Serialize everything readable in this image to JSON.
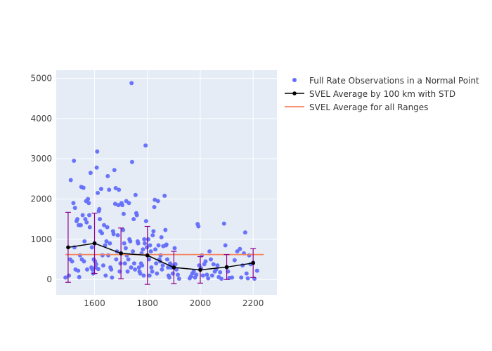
{
  "chart_data": {
    "type": "scatter",
    "title": "",
    "xlabel": "",
    "ylabel": "",
    "xlim": [
      1455,
      2290
    ],
    "ylim": [
      -380,
      5200
    ],
    "xticks": [
      1600,
      1800,
      2000,
      2200
    ],
    "yticks": [
      0,
      1000,
      2000,
      3000,
      4000,
      5000
    ],
    "grid": true,
    "legend_position": "outside-right-top",
    "colors": {
      "background": "#E5ECF6",
      "grid": "#FFFFFF",
      "scatter": "#636EFA",
      "svel_line": "#000000",
      "error_bars": "#8B008B",
      "overall_line": "#F4845F"
    },
    "legend": [
      {
        "label": "Full Rate Observations in a Normal Point",
        "symbol": "dot"
      },
      {
        "label": "SVEL Average by 100 km with STD",
        "symbol": "line-dot"
      },
      {
        "label": "SVEL Average for all Ranges",
        "symbol": "line"
      }
    ],
    "svel_average": {
      "x": [
        1500,
        1600,
        1700,
        1800,
        1900,
        2000,
        2100,
        2200
      ],
      "y": [
        800,
        900,
        650,
        600,
        300,
        240,
        310,
        410
      ],
      "std": [
        870,
        750,
        630,
        720,
        400,
        330,
        310,
        360
      ]
    },
    "overall_average": {
      "x": [
        1490,
        2240
      ],
      "y": 620
    },
    "scatter_points": [
      [
        1490,
        50
      ],
      [
        1503,
        100
      ],
      [
        1508,
        500
      ],
      [
        1510,
        2470
      ],
      [
        1515,
        450
      ],
      [
        1520,
        1900
      ],
      [
        1522,
        2950
      ],
      [
        1524,
        800
      ],
      [
        1526,
        1780
      ],
      [
        1528,
        250
      ],
      [
        1532,
        1450
      ],
      [
        1535,
        1500
      ],
      [
        1538,
        220
      ],
      [
        1540,
        1350
      ],
      [
        1542,
        60
      ],
      [
        1545,
        600
      ],
      [
        1548,
        1350
      ],
      [
        1550,
        2300
      ],
      [
        1552,
        500
      ],
      [
        1555,
        1600
      ],
      [
        1558,
        2280
      ],
      [
        1560,
        450
      ],
      [
        1562,
        950
      ],
      [
        1565,
        1500
      ],
      [
        1568,
        1950
      ],
      [
        1570,
        1420
      ],
      [
        1572,
        250
      ],
      [
        1575,
        2000
      ],
      [
        1578,
        1900
      ],
      [
        1580,
        1600
      ],
      [
        1582,
        1300
      ],
      [
        1585,
        2650
      ],
      [
        1588,
        300
      ],
      [
        1590,
        800
      ],
      [
        1592,
        250
      ],
      [
        1595,
        150
      ],
      [
        1597,
        500
      ],
      [
        1600,
        900
      ],
      [
        1602,
        450
      ],
      [
        1604,
        300
      ],
      [
        1606,
        380
      ],
      [
        1608,
        2780
      ],
      [
        1610,
        3180
      ],
      [
        1612,
        2150
      ],
      [
        1614,
        260
      ],
      [
        1616,
        1700
      ],
      [
        1618,
        1750
      ],
      [
        1620,
        1500
      ],
      [
        1622,
        1200
      ],
      [
        1625,
        2250
      ],
      [
        1628,
        1150
      ],
      [
        1630,
        600
      ],
      [
        1633,
        350
      ],
      [
        1636,
        1350
      ],
      [
        1640,
        850
      ],
      [
        1642,
        100
      ],
      [
        1645,
        950
      ],
      [
        1648,
        1300
      ],
      [
        1650,
        2570
      ],
      [
        1652,
        600
      ],
      [
        1655,
        2230
      ],
      [
        1658,
        900
      ],
      [
        1660,
        300
      ],
      [
        1663,
        250
      ],
      [
        1666,
        50
      ],
      [
        1670,
        1200
      ],
      [
        1672,
        1130
      ],
      [
        1675,
        2720
      ],
      [
        1678,
        1880
      ],
      [
        1680,
        2270
      ],
      [
        1682,
        500
      ],
      [
        1685,
        700
      ],
      [
        1688,
        1100
      ],
      [
        1690,
        1850
      ],
      [
        1692,
        2230
      ],
      [
        1695,
        200
      ],
      [
        1698,
        400
      ],
      [
        1700,
        650
      ],
      [
        1702,
        1900
      ],
      [
        1705,
        1850
      ],
      [
        1708,
        1230
      ],
      [
        1710,
        1630
      ],
      [
        1712,
        900
      ],
      [
        1715,
        400
      ],
      [
        1718,
        780
      ],
      [
        1720,
        1950
      ],
      [
        1722,
        600
      ],
      [
        1725,
        200
      ],
      [
        1728,
        500
      ],
      [
        1730,
        1900
      ],
      [
        1732,
        1000
      ],
      [
        1735,
        950
      ],
      [
        1738,
        300
      ],
      [
        1740,
        4880
      ],
      [
        1742,
        2920
      ],
      [
        1745,
        700
      ],
      [
        1748,
        1500
      ],
      [
        1750,
        400
      ],
      [
        1753,
        250
      ],
      [
        1755,
        2100
      ],
      [
        1758,
        1650
      ],
      [
        1760,
        1600
      ],
      [
        1763,
        950
      ],
      [
        1765,
        900
      ],
      [
        1768,
        300
      ],
      [
        1770,
        200
      ],
      [
        1773,
        150
      ],
      [
        1776,
        400
      ],
      [
        1778,
        650
      ],
      [
        1780,
        350
      ],
      [
        1783,
        750
      ],
      [
        1786,
        100
      ],
      [
        1788,
        1000
      ],
      [
        1790,
        900
      ],
      [
        1793,
        3330
      ],
      [
        1795,
        1450
      ],
      [
        1798,
        800
      ],
      [
        1800,
        600
      ],
      [
        1803,
        1000
      ],
      [
        1806,
        500
      ],
      [
        1808,
        100
      ],
      [
        1810,
        850
      ],
      [
        1813,
        700
      ],
      [
        1815,
        300
      ],
      [
        1818,
        200
      ],
      [
        1820,
        1100
      ],
      [
        1823,
        1200
      ],
      [
        1826,
        1800
      ],
      [
        1828,
        1980
      ],
      [
        1830,
        750
      ],
      [
        1833,
        400
      ],
      [
        1836,
        150
      ],
      [
        1840,
        1950
      ],
      [
        1842,
        850
      ],
      [
        1845,
        500
      ],
      [
        1848,
        450
      ],
      [
        1850,
        600
      ],
      [
        1853,
        1050
      ],
      [
        1855,
        250
      ],
      [
        1858,
        350
      ],
      [
        1860,
        830
      ],
      [
        1865,
        2080
      ],
      [
        1868,
        1230
      ],
      [
        1870,
        850
      ],
      [
        1872,
        870
      ],
      [
        1875,
        500
      ],
      [
        1878,
        300
      ],
      [
        1880,
        100
      ],
      [
        1883,
        50
      ],
      [
        1886,
        400
      ],
      [
        1890,
        300
      ],
      [
        1893,
        350
      ],
      [
        1896,
        150
      ],
      [
        1900,
        300
      ],
      [
        1903,
        780
      ],
      [
        1906,
        380
      ],
      [
        1910,
        250
      ],
      [
        1915,
        120
      ],
      [
        1920,
        20
      ],
      [
        1960,
        30
      ],
      [
        1965,
        80
      ],
      [
        1970,
        150
      ],
      [
        1975,
        200
      ],
      [
        1980,
        50
      ],
      [
        1985,
        120
      ],
      [
        1990,
        1380
      ],
      [
        1993,
        1320
      ],
      [
        1996,
        350
      ],
      [
        2000,
        250
      ],
      [
        2003,
        280
      ],
      [
        2006,
        600
      ],
      [
        2010,
        100
      ],
      [
        2015,
        380
      ],
      [
        2020,
        450
      ],
      [
        2025,
        120
      ],
      [
        2030,
        30
      ],
      [
        2035,
        700
      ],
      [
        2040,
        500
      ],
      [
        2045,
        100
      ],
      [
        2050,
        380
      ],
      [
        2055,
        200
      ],
      [
        2060,
        250
      ],
      [
        2065,
        350
      ],
      [
        2070,
        60
      ],
      [
        2075,
        180
      ],
      [
        2080,
        20
      ],
      [
        2090,
        1390
      ],
      [
        2095,
        850
      ],
      [
        2100,
        300
      ],
      [
        2105,
        200
      ],
      [
        2110,
        40
      ],
      [
        2120,
        50
      ],
      [
        2130,
        480
      ],
      [
        2140,
        700
      ],
      [
        2150,
        760
      ],
      [
        2155,
        50
      ],
      [
        2160,
        350
      ],
      [
        2165,
        650
      ],
      [
        2170,
        1170
      ],
      [
        2175,
        150
      ],
      [
        2180,
        30
      ],
      [
        2185,
        600
      ],
      [
        2190,
        380
      ],
      [
        2200,
        420
      ],
      [
        2205,
        20
      ],
      [
        2215,
        220
      ]
    ]
  }
}
